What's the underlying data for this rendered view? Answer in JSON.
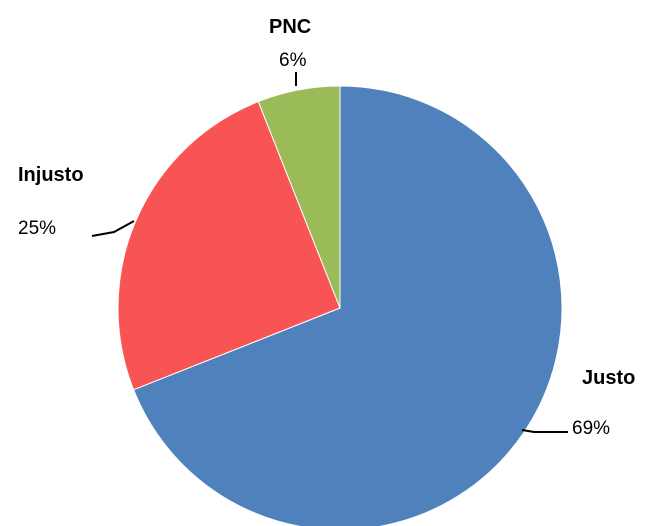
{
  "chart_data": {
    "type": "pie",
    "slices": [
      {
        "label": "Justo",
        "value": 69,
        "value_label": "69%",
        "color": "#4F81BD"
      },
      {
        "label": "Injusto",
        "value": 25,
        "value_label": "25%",
        "color": "#F95454"
      },
      {
        "label": "PNC",
        "value": 6,
        "value_label": "6%",
        "color": "#9BBB59"
      }
    ],
    "start_angle": "12 o'clock",
    "direction": "clockwise",
    "legend": "none"
  }
}
